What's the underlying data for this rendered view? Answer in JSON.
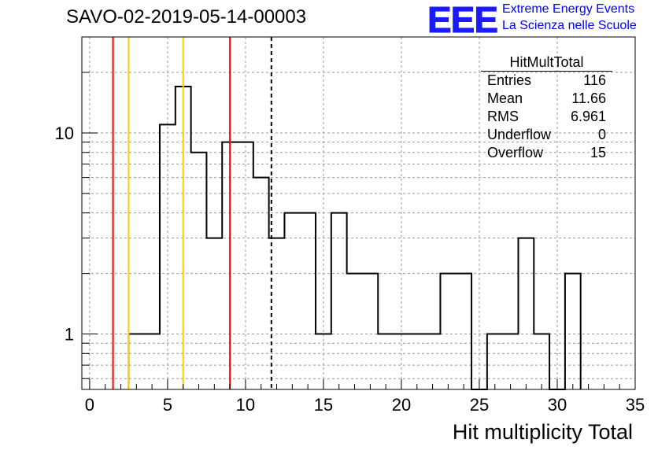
{
  "header": {
    "run_title": "SAVO-02-2019-05-14-00003",
    "logo_text": "EEE",
    "logo_line1": "Extreme Energy Events",
    "logo_line2": "La Scienza nelle Scuole",
    "logo_color": "#1a1aff"
  },
  "stats_box": {
    "title": "HitMultTotal",
    "rows": [
      {
        "label": "Entries",
        "value": "116"
      },
      {
        "label": "Mean",
        "value": "11.66"
      },
      {
        "label": "RMS",
        "value": "6.961"
      },
      {
        "label": "Underflow",
        "value": "0"
      },
      {
        "label": "Overflow",
        "value": "15"
      }
    ]
  },
  "chart_data": {
    "type": "histogram",
    "title": "",
    "xlabel": "Hit multiplicity Total",
    "ylabel": "",
    "xlim": [
      -0.5,
      35
    ],
    "ylim": [
      0.53,
      30
    ],
    "y_scale": "log",
    "grid": true,
    "bin_width": 1,
    "bins_x_low": [
      2.5,
      3.5,
      4.5,
      5.5,
      6.5,
      7.5,
      8.5,
      9.5,
      10.5,
      11.5,
      12.5,
      13.5,
      14.5,
      15.5,
      16.5,
      17.5,
      18.5,
      19.5,
      20.5,
      21.5,
      22.5,
      23.5,
      24.5,
      25.5,
      26.5,
      27.5,
      28.5,
      29.5,
      30.5
    ],
    "counts": [
      1,
      1,
      11,
      17,
      8,
      3,
      9,
      9,
      6,
      3,
      4,
      4,
      1,
      4,
      2,
      2,
      1,
      1,
      1,
      1,
      2,
      2,
      0,
      1,
      1,
      3,
      1,
      0,
      2
    ],
    "x_ticks": [
      0,
      5,
      10,
      15,
      20,
      25,
      30,
      35
    ],
    "y_ticks": [
      1,
      10
    ],
    "vertical_lines": [
      {
        "x": 1.5,
        "color": "#ff0000",
        "style": "solid"
      },
      {
        "x": 2.5,
        "color": "#ffcc00",
        "style": "solid"
      },
      {
        "x": 6.0,
        "color": "#ffcc00",
        "style": "solid"
      },
      {
        "x": 9.0,
        "color": "#ff0000",
        "style": "solid"
      },
      {
        "x": 11.66,
        "color": "#000000",
        "style": "dashed"
      }
    ]
  }
}
